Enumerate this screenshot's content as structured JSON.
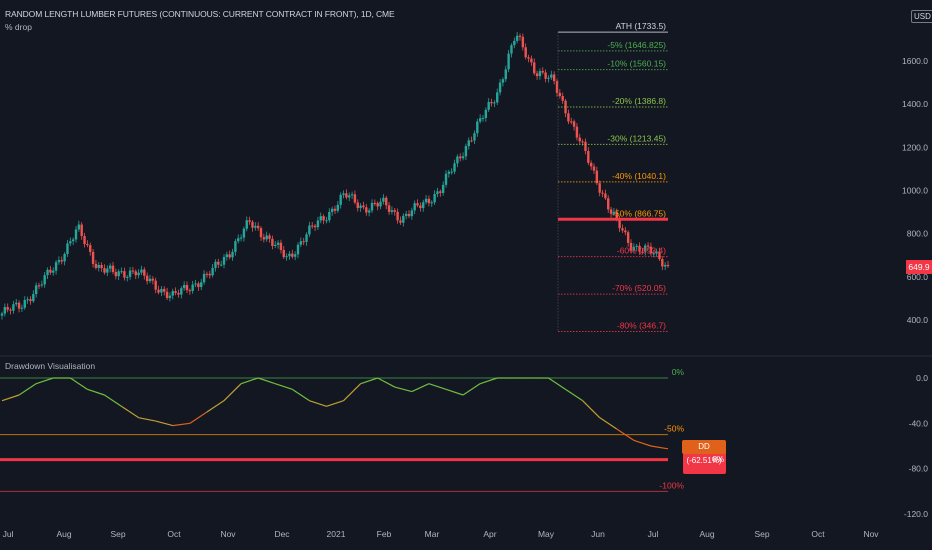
{
  "header": {
    "title": "RANDOM LENGTH LUMBER FUTURES (CONTINUOUS: CURRENT CONTRACT IN FRONT), 1D, CME",
    "indicator": "% drop",
    "currency": "USD",
    "last_price": "649.9"
  },
  "panel": {
    "title": "Drawdown Visualisation",
    "dd_label": "DD (-62.51%)",
    "dd_value_tail": "8%"
  },
  "colors": {
    "background": "#131722",
    "up": "#26a69a",
    "down": "#ef5350",
    "green_level": "#4caf50",
    "orange_level": "#ff9800",
    "red_level": "#f23645",
    "drawdown_line_start": "#4caf50",
    "drawdown_line_end": "#e0611a"
  },
  "chart_data": [
    {
      "type": "candlestick",
      "title": "",
      "x_axis_labels": [
        "Jul",
        "Aug",
        "Sep",
        "Oct",
        "Nov",
        "Dec",
        "2021",
        "Feb",
        "Mar",
        "Apr",
        "May",
        "Jun",
        "Jul",
        "Aug",
        "Sep",
        "Oct",
        "Nov"
      ],
      "y_ticks": [
        400,
        600,
        800,
        1000,
        1200,
        1400,
        1600
      ],
      "y_tick_labels": [
        "400.0",
        "600.0",
        "800.0",
        "1000.0",
        "1200.0",
        "1400.0",
        "1600.0"
      ],
      "close_path": [
        [
          "Jul",
          430
        ],
        [
          "Jul",
          470
        ],
        [
          "Aug",
          560
        ],
        [
          "Aug",
          680
        ],
        [
          "Sep",
          820
        ],
        [
          "Sep",
          650
        ],
        [
          "Sep",
          610
        ],
        [
          "Oct",
          630
        ],
        [
          "Oct",
          560
        ],
        [
          "Nov",
          510
        ],
        [
          "Nov",
          560
        ],
        [
          "Nov",
          620
        ],
        [
          "Dec",
          720
        ],
        [
          "Dec",
          850
        ],
        [
          "Dec",
          780
        ],
        [
          "2021",
          680
        ],
        [
          "2021",
          800
        ],
        [
          "Feb",
          880
        ],
        [
          "Feb",
          980
        ],
        [
          "Feb",
          920
        ],
        [
          "Mar",
          940
        ],
        [
          "Mar",
          870
        ],
        [
          "Mar",
          930
        ],
        [
          "Apr",
          1000
        ],
        [
          "Apr",
          1150
        ],
        [
          "Apr",
          1300
        ],
        [
          "May",
          1450
        ],
        [
          "May",
          1720
        ],
        [
          "May",
          1560
        ],
        [
          "Jun",
          1500
        ],
        [
          "Jun",
          1300
        ],
        [
          "Jun",
          1100
        ],
        [
          "Jun",
          900
        ],
        [
          "Jul",
          750
        ],
        [
          "Jul",
          720
        ],
        [
          "Jul",
          649.9
        ]
      ],
      "last_price": 649.9,
      "ath": 1733.5,
      "levels": [
        {
          "label": "ATH (1733.5)",
          "pct": 0,
          "value": 1733.5,
          "color": "#d1d4dc"
        },
        {
          "label": "-5% (1646.825)",
          "pct": -5,
          "value": 1646.825,
          "color": "#4caf50"
        },
        {
          "label": "-10% (1560.15)",
          "pct": -10,
          "value": 1560.15,
          "color": "#4caf50"
        },
        {
          "label": "-20% (1386.8)",
          "pct": -20,
          "value": 1386.8,
          "color": "#8bc34a"
        },
        {
          "label": "-30% (1213.45)",
          "pct": -30,
          "value": 1213.45,
          "color": "#8bc34a"
        },
        {
          "label": "-40% (1040.1)",
          "pct": -40,
          "value": 1040.1,
          "color": "#ff9800"
        },
        {
          "label": "-50% (866.75)",
          "pct": -50,
          "value": 866.75,
          "color": "#ff9800"
        },
        {
          "label": "-60% (693.4)",
          "pct": -60,
          "value": 693.4,
          "color": "#f23645"
        },
        {
          "label": "-70% (520.05)",
          "pct": -70,
          "value": 520.05,
          "color": "#f23645"
        },
        {
          "label": "-80% (346.7)",
          "pct": -80,
          "value": 346.7,
          "color": "#f23645"
        }
      ],
      "highlight_level": -50
    },
    {
      "type": "line",
      "title": "Drawdown Visualisation",
      "y_ticks": [
        0,
        -40,
        -80,
        -120
      ],
      "y_tick_labels": [
        "0.0",
        "-40.0",
        "-80.0",
        "-120.0"
      ],
      "levels": [
        {
          "label": "0%",
          "value": 0,
          "color": "#4caf50"
        },
        {
          "label": "-50%",
          "value": -50,
          "color": "#ff9800"
        },
        {
          "label": "-100%",
          "value": -100,
          "color": "#f23645"
        }
      ],
      "highlight_value": -72,
      "series": [
        {
          "values": [
            -20,
            -15,
            -5,
            0,
            0,
            -10,
            -15,
            -25,
            -35,
            -38,
            -42,
            -40,
            -30,
            -20,
            -5,
            0,
            -5,
            -10,
            -20,
            -25,
            -20,
            -5,
            0,
            -8,
            -12,
            -5,
            -10,
            -15,
            -5,
            0,
            0,
            0,
            0,
            -10,
            -20,
            -35,
            -45,
            -55,
            -60,
            -62.51
          ],
          "last": -62.51
        }
      ]
    }
  ]
}
